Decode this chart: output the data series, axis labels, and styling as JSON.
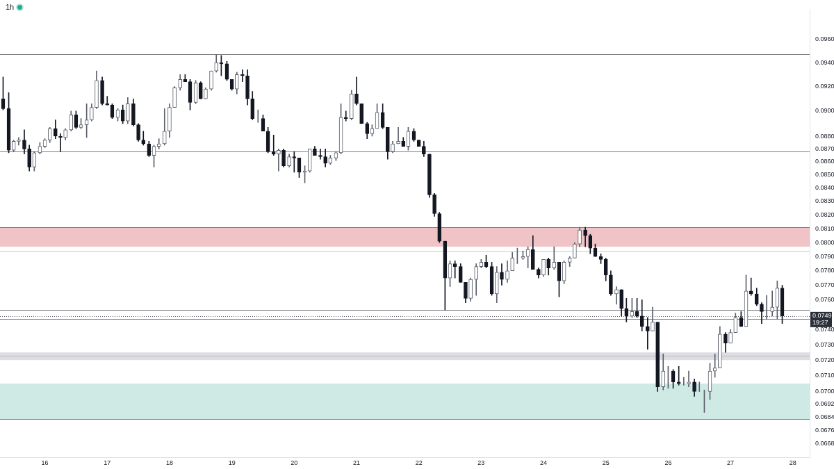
{
  "chart_data": {
    "type": "candlestick",
    "title": "1h",
    "x": [
      15.33,
      15.42,
      15.5,
      15.58,
      15.67,
      15.75,
      15.83,
      15.92,
      16,
      16.08,
      16.17,
      16.25,
      16.33,
      16.42,
      16.5,
      16.58,
      16.67,
      16.75,
      16.83,
      16.92,
      17,
      17.08,
      17.17,
      17.25,
      17.33,
      17.42,
      17.5,
      17.58,
      17.67,
      17.75,
      17.83,
      17.92,
      18,
      18.08,
      18.17,
      18.25,
      18.33,
      18.42,
      18.5,
      18.58,
      18.67,
      18.75,
      18.83,
      18.92,
      19,
      19.08,
      19.17,
      19.25,
      19.33,
      19.42,
      19.5,
      19.58,
      19.67,
      19.75,
      19.83,
      19.92,
      20,
      20.08,
      20.17,
      20.25,
      20.33,
      20.42,
      20.5,
      20.58,
      20.67,
      20.75,
      20.83,
      20.92,
      21,
      21.08,
      21.17,
      21.25,
      21.33,
      21.42,
      21.5,
      21.58,
      21.67,
      21.75,
      21.83,
      21.92,
      22,
      22.08,
      22.17,
      22.25,
      22.33,
      22.42,
      22.5,
      22.58,
      22.67,
      22.75,
      22.83,
      22.92,
      23,
      23.08,
      23.17,
      23.25,
      23.33,
      23.42,
      23.5,
      23.58,
      23.67,
      23.75,
      23.83,
      23.92,
      24,
      24.08,
      24.17,
      24.25,
      24.33,
      24.42,
      24.5,
      24.58,
      24.67,
      24.75,
      24.83,
      24.92,
      25,
      25.08,
      25.17,
      25.25,
      25.33,
      25.42,
      25.5,
      25.58,
      25.67,
      25.75,
      25.83,
      25.92,
      26,
      26.08,
      26.17,
      26.25,
      26.33,
      26.42,
      26.5,
      26.58,
      26.67,
      26.75,
      26.83,
      26.92,
      27,
      27.08,
      27.17,
      27.25,
      27.33,
      27.42,
      27.5,
      27.58,
      27.67,
      27.75,
      27.83
    ],
    "ohlc": [
      [
        0.091,
        0.0928,
        0.0901,
        0.0902
      ],
      [
        0.0902,
        0.0915,
        0.0867,
        0.0869
      ],
      [
        0.0869,
        0.0877,
        0.0868,
        0.0876
      ],
      [
        0.0876,
        0.0879,
        0.0873,
        0.0877
      ],
      [
        0.0877,
        0.0885,
        0.0866,
        0.087
      ],
      [
        0.087,
        0.0873,
        0.0853,
        0.0856
      ],
      [
        0.0856,
        0.0868,
        0.0853,
        0.0867
      ],
      [
        0.0867,
        0.0875,
        0.0866,
        0.0872
      ],
      [
        0.0872,
        0.0878,
        0.0871,
        0.0877
      ],
      [
        0.0877,
        0.0887,
        0.0875,
        0.0886
      ],
      [
        0.0886,
        0.0893,
        0.0878,
        0.088
      ],
      [
        0.088,
        0.0882,
        0.0868,
        0.0879
      ],
      [
        0.0879,
        0.0886,
        0.0877,
        0.0885
      ],
      [
        0.0885,
        0.09,
        0.0884,
        0.0897
      ],
      [
        0.0897,
        0.09,
        0.0886,
        0.0887
      ],
      [
        0.0887,
        0.0894,
        0.0886,
        0.0889
      ],
      [
        0.0889,
        0.0906,
        0.0879,
        0.0893
      ],
      [
        0.0893,
        0.0906,
        0.0892,
        0.0903
      ],
      [
        0.0903,
        0.0933,
        0.0902,
        0.0925
      ],
      [
        0.0925,
        0.0928,
        0.0905,
        0.0906
      ],
      [
        0.0906,
        0.0912,
        0.0905,
        0.0905
      ],
      [
        0.0905,
        0.0906,
        0.0894,
        0.0895
      ],
      [
        0.0895,
        0.0902,
        0.0892,
        0.0901
      ],
      [
        0.0901,
        0.0905,
        0.089,
        0.0892
      ],
      [
        0.0892,
        0.0911,
        0.089,
        0.0906
      ],
      [
        0.0906,
        0.091,
        0.0888,
        0.0889
      ],
      [
        0.0889,
        0.089,
        0.0876,
        0.0877
      ],
      [
        0.0877,
        0.0884,
        0.0873,
        0.0874
      ],
      [
        0.0874,
        0.0876,
        0.0864,
        0.0865
      ],
      [
        0.0865,
        0.0873,
        0.0856,
        0.0872
      ],
      [
        0.0872,
        0.0878,
        0.087,
        0.0874
      ],
      [
        0.0874,
        0.0902,
        0.0873,
        0.0884
      ],
      [
        0.0884,
        0.0906,
        0.0879,
        0.0903
      ],
      [
        0.0903,
        0.092,
        0.0903,
        0.0919
      ],
      [
        0.0919,
        0.093,
        0.0917,
        0.0926
      ],
      [
        0.0926,
        0.093,
        0.0924,
        0.0924
      ],
      [
        0.0924,
        0.0926,
        0.0901,
        0.0907
      ],
      [
        0.0907,
        0.0925,
        0.0906,
        0.0923
      ],
      [
        0.0923,
        0.0924,
        0.091,
        0.091
      ],
      [
        0.091,
        0.0919,
        0.091,
        0.0918
      ],
      [
        0.0918,
        0.0933,
        0.0917,
        0.0933
      ],
      [
        0.0933,
        0.0947,
        0.0932,
        0.094
      ],
      [
        0.094,
        0.0946,
        0.0929,
        0.0939
      ],
      [
        0.0939,
        0.0941,
        0.0925,
        0.0926
      ],
      [
        0.0926,
        0.0926,
        0.0917,
        0.0918
      ],
      [
        0.0918,
        0.0932,
        0.0914,
        0.093
      ],
      [
        0.093,
        0.0934,
        0.0924,
        0.0929
      ],
      [
        0.0929,
        0.0934,
        0.0905,
        0.091
      ],
      [
        0.091,
        0.0916,
        0.0893,
        0.0894
      ],
      [
        0.0894,
        0.0901,
        0.0891,
        0.0894
      ],
      [
        0.0894,
        0.0897,
        0.0884,
        0.0884
      ],
      [
        0.0884,
        0.0887,
        0.0867,
        0.0868
      ],
      [
        0.0868,
        0.0881,
        0.0865,
        0.0866
      ],
      [
        0.0866,
        0.087,
        0.0853,
        0.0869
      ],
      [
        0.0869,
        0.087,
        0.0856,
        0.0857
      ],
      [
        0.0857,
        0.0866,
        0.0856,
        0.0864
      ],
      [
        0.0864,
        0.0868,
        0.0852,
        0.0863
      ],
      [
        0.0863,
        0.0863,
        0.0848,
        0.0852
      ],
      [
        0.0852,
        0.0857,
        0.0844,
        0.0853
      ],
      [
        0.0853,
        0.087,
        0.0852,
        0.087
      ],
      [
        0.087,
        0.0872,
        0.0865,
        0.0865
      ],
      [
        0.0865,
        0.087,
        0.0862,
        0.0864
      ],
      [
        0.0864,
        0.087,
        0.0856,
        0.0859
      ],
      [
        0.0859,
        0.0865,
        0.0858,
        0.0863
      ],
      [
        0.0863,
        0.0868,
        0.0861,
        0.0867
      ],
      [
        0.0867,
        0.0906,
        0.0866,
        0.0895
      ],
      [
        0.0895,
        0.09,
        0.0892,
        0.0894
      ],
      [
        0.0894,
        0.0917,
        0.0893,
        0.0914
      ],
      [
        0.0914,
        0.0928,
        0.0905,
        0.0906
      ],
      [
        0.0906,
        0.0906,
        0.089,
        0.089
      ],
      [
        0.089,
        0.0891,
        0.0878,
        0.0882
      ],
      [
        0.0882,
        0.0889,
        0.088,
        0.0886
      ],
      [
        0.0886,
        0.0906,
        0.0886,
        0.0899
      ],
      [
        0.0899,
        0.0906,
        0.0886,
        0.0887
      ],
      [
        0.0887,
        0.0887,
        0.0862,
        0.0868
      ],
      [
        0.0868,
        0.0876,
        0.0867,
        0.0874
      ],
      [
        0.0874,
        0.0887,
        0.0874,
        0.0876
      ],
      [
        0.0876,
        0.0879,
        0.0872,
        0.0872
      ],
      [
        0.0872,
        0.0887,
        0.0869,
        0.0884
      ],
      [
        0.0884,
        0.0886,
        0.0876,
        0.0877
      ],
      [
        0.0877,
        0.0877,
        0.0872,
        0.0872
      ],
      [
        0.0872,
        0.0876,
        0.0864,
        0.0866
      ],
      [
        0.0866,
        0.0866,
        0.0833,
        0.0835
      ],
      [
        0.0835,
        0.0836,
        0.0819,
        0.0821
      ],
      [
        0.0821,
        0.0822,
        0.08,
        0.0801
      ],
      [
        0.0801,
        0.0801,
        0.0753,
        0.0775
      ],
      [
        0.0775,
        0.0787,
        0.0769,
        0.0785
      ],
      [
        0.0785,
        0.0787,
        0.0775,
        0.0783
      ],
      [
        0.0783,
        0.0785,
        0.0772,
        0.0772
      ],
      [
        0.0772,
        0.0772,
        0.0758,
        0.0761
      ],
      [
        0.0761,
        0.0775,
        0.0759,
        0.0774
      ],
      [
        0.0774,
        0.0785,
        0.0763,
        0.0783
      ],
      [
        0.0783,
        0.0788,
        0.0782,
        0.0786
      ],
      [
        0.0786,
        0.0791,
        0.0782,
        0.0783
      ],
      [
        0.0783,
        0.0786,
        0.0763,
        0.0764
      ],
      [
        0.0764,
        0.0783,
        0.0758,
        0.0779
      ],
      [
        0.0779,
        0.0785,
        0.077,
        0.0774
      ],
      [
        0.0774,
        0.0787,
        0.0772,
        0.078
      ],
      [
        0.078,
        0.0793,
        0.078,
        0.0789
      ],
      [
        0.0789,
        0.0796,
        0.0785,
        0.0789
      ],
      [
        0.0789,
        0.0794,
        0.0788,
        0.079
      ],
      [
        0.079,
        0.0797,
        0.0782,
        0.0795
      ],
      [
        0.0795,
        0.0805,
        0.0781,
        0.0781
      ],
      [
        0.0781,
        0.0782,
        0.0775,
        0.0777
      ],
      [
        0.0777,
        0.0788,
        0.0776,
        0.0788
      ],
      [
        0.0788,
        0.0789,
        0.0777,
        0.0782
      ],
      [
        0.0782,
        0.0797,
        0.0781,
        0.0786
      ],
      [
        0.0786,
        0.0786,
        0.0762,
        0.0773
      ],
      [
        0.0773,
        0.0787,
        0.0771,
        0.0786
      ],
      [
        0.0786,
        0.079,
        0.0783,
        0.0789
      ],
      [
        0.0789,
        0.08,
        0.0789,
        0.0799
      ],
      [
        0.0799,
        0.0811,
        0.0797,
        0.0809
      ],
      [
        0.0809,
        0.0811,
        0.0797,
        0.0805
      ],
      [
        0.0805,
        0.0806,
        0.0792,
        0.0796
      ],
      [
        0.0796,
        0.0799,
        0.079,
        0.079
      ],
      [
        0.079,
        0.0792,
        0.0785,
        0.0788
      ],
      [
        0.0788,
        0.0789,
        0.0773,
        0.0777
      ],
      [
        0.0777,
        0.078,
        0.0763,
        0.0764
      ],
      [
        0.0764,
        0.0769,
        0.0757,
        0.0767
      ],
      [
        0.0767,
        0.0767,
        0.0749,
        0.0754
      ],
      [
        0.0754,
        0.0761,
        0.0745,
        0.0749
      ],
      [
        0.0749,
        0.0761,
        0.0748,
        0.0752
      ],
      [
        0.0752,
        0.0761,
        0.0748,
        0.0749
      ],
      [
        0.0749,
        0.076,
        0.0739,
        0.0742
      ],
      [
        0.0742,
        0.0748,
        0.0727,
        0.0739
      ],
      [
        0.0739,
        0.0755,
        0.0739,
        0.0745
      ],
      [
        0.0745,
        0.0745,
        0.07,
        0.0703
      ],
      [
        0.0703,
        0.0724,
        0.0701,
        0.0713
      ],
      [
        0.0713,
        0.0716,
        0.0702,
        0.0713
      ],
      [
        0.0713,
        0.0714,
        0.0702,
        0.0706
      ],
      [
        0.0706,
        0.0716,
        0.0704,
        0.0705
      ],
      [
        0.0705,
        0.0709,
        0.0704,
        0.0705
      ],
      [
        0.0705,
        0.0713,
        0.0703,
        0.0706
      ],
      [
        0.0706,
        0.0708,
        0.0697,
        0.07
      ],
      [
        0.07,
        0.0706,
        0.07,
        0.07
      ],
      [
        0.07,
        0.0701,
        0.0687,
        0.07
      ],
      [
        0.07,
        0.0718,
        0.0695,
        0.0713
      ],
      [
        0.0713,
        0.0724,
        0.0709,
        0.0715
      ],
      [
        0.0715,
        0.0742,
        0.0715,
        0.0737
      ],
      [
        0.0737,
        0.0738,
        0.0725,
        0.0731
      ],
      [
        0.0731,
        0.074,
        0.0731,
        0.0738
      ],
      [
        0.0738,
        0.0751,
        0.0738,
        0.0748
      ],
      [
        0.0748,
        0.0752,
        0.0742,
        0.0742
      ],
      [
        0.0742,
        0.0777,
        0.0742,
        0.0766
      ],
      [
        0.0766,
        0.0775,
        0.0763,
        0.0764
      ],
      [
        0.0764,
        0.0768,
        0.0756,
        0.0757
      ],
      [
        0.0757,
        0.0758,
        0.0744,
        0.0752
      ],
      [
        0.0752,
        0.0763,
        0.0747,
        0.0752
      ],
      [
        0.0752,
        0.0766,
        0.0749,
        0.0755
      ],
      [
        0.0755,
        0.0773,
        0.0747,
        0.0768
      ],
      [
        0.0768,
        0.077,
        0.0744,
        0.0749
      ]
    ],
    "xlim": [
      15.28,
      28.27
    ],
    "xticks": [
      16,
      17,
      18,
      19,
      20,
      21,
      22,
      23,
      24,
      25,
      26,
      27,
      28
    ],
    "ylim": [
      0.066,
      0.0986
    ],
    "yticks": [
      {
        "value": 0.096,
        "label": "0.0960"
      },
      {
        "value": 0.094,
        "label": "0.0940"
      },
      {
        "value": 0.092,
        "label": "0.0920"
      },
      {
        "value": 0.09,
        "label": "0.0900"
      },
      {
        "value": 0.088,
        "label": "0.0880"
      },
      {
        "value": 0.087,
        "label": "0.0870"
      },
      {
        "value": 0.086,
        "label": "0.0860"
      },
      {
        "value": 0.085,
        "label": "0.0850"
      },
      {
        "value": 0.084,
        "label": "0.0840"
      },
      {
        "value": 0.083,
        "label": "0.0830"
      },
      {
        "value": 0.082,
        "label": "0.0820"
      },
      {
        "value": 0.081,
        "label": "0.0810"
      },
      {
        "value": 0.08,
        "label": "0.0800"
      },
      {
        "value": 0.079,
        "label": "0.0790"
      },
      {
        "value": 0.078,
        "label": "0.0780"
      },
      {
        "value": 0.077,
        "label": "0.0770"
      },
      {
        "value": 0.076,
        "label": "0.0760"
      },
      {
        "value": 0.074,
        "label": "0.0740"
      },
      {
        "value": 0.073,
        "label": "0.0730"
      },
      {
        "value": 0.072,
        "label": "0.0720"
      },
      {
        "value": 0.071,
        "label": "0.0710"
      },
      {
        "value": 0.07,
        "label": "0.0700"
      },
      {
        "value": 0.0692,
        "label": "0.0692"
      },
      {
        "value": 0.0684,
        "label": "0.0684"
      },
      {
        "value": 0.0676,
        "label": "0.0676"
      },
      {
        "value": 0.0668,
        "label": "0.0668"
      }
    ],
    "log": "y",
    "bands": [
      {
        "axis": "y",
        "from": 0.0797,
        "to": 0.0811,
        "color": "#f0c4c6"
      },
      {
        "axis": "y",
        "from": 0.072,
        "to": 0.0725,
        "color": "#dddde2"
      },
      {
        "axis": "y",
        "from": 0.0683,
        "to": 0.0705,
        "color": "#cfeae4"
      }
    ],
    "ref_lines": [
      {
        "axis": "y",
        "value": 0.0947,
        "color": "#7a7a7a"
      },
      {
        "axis": "y",
        "value": 0.0868,
        "color": "#7a7a7a"
      },
      {
        "axis": "y",
        "value": 0.0811,
        "color": "#7a7a7a"
      },
      {
        "axis": "y",
        "value": 0.0794,
        "color": "#c8c9d0"
      },
      {
        "axis": "y",
        "value": 0.0753,
        "color": "#7a7a7a"
      },
      {
        "axis": "y",
        "value": 0.0749,
        "label": "0.0749",
        "color": "#5a5d68",
        "line_style": "dotted"
      },
      {
        "axis": "y",
        "value": 0.0747,
        "color": "#7a7a7a"
      },
      {
        "axis": "y",
        "value": 0.0723,
        "color": "#babcc4"
      },
      {
        "axis": "y",
        "value": 0.0683,
        "color": "#7a7a7a"
      }
    ],
    "annotations": [
      "19:27"
    ]
  }
}
